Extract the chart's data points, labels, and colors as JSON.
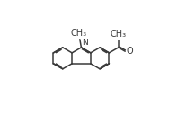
{
  "bg_color": "#ffffff",
  "line_color": "#3a3a3a",
  "line_width": 1.1,
  "font_size": 7.0,
  "fig_width": 2.08,
  "fig_height": 1.37,
  "dpi": 100,
  "BL": 0.088,
  "label_CH3N": "CH₃",
  "label_CH3ac": "CH₃",
  "label_O": "O",
  "label_N": "N"
}
